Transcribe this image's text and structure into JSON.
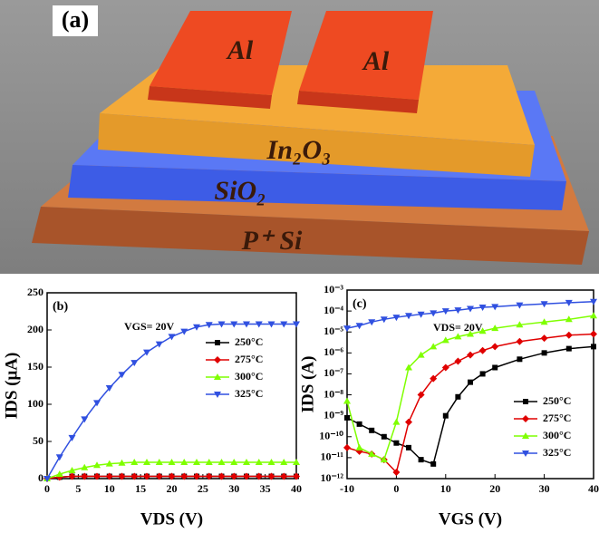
{
  "figure_a": {
    "label": "(a)",
    "layers": [
      "Al",
      "Al",
      "In₂O₃",
      "SiO₂",
      "P⁺ Si"
    ]
  },
  "chart_data": [
    {
      "type": "line",
      "label": "(b)",
      "annotation": "VGS= 20V",
      "xlabel": "VDS (V)",
      "ylabel": "IDS (μA)",
      "x": [
        0,
        2,
        4,
        6,
        8,
        10,
        12,
        14,
        16,
        18,
        20,
        22,
        24,
        26,
        28,
        30,
        32,
        34,
        36,
        38,
        40
      ],
      "xlim": [
        0,
        40
      ],
      "xticks": [
        0,
        5,
        10,
        15,
        20,
        25,
        30,
        35,
        40
      ],
      "ylim": [
        0,
        250
      ],
      "yticks": [
        0,
        50,
        100,
        150,
        200,
        250
      ],
      "grid": false,
      "legend": "right",
      "series": [
        {
          "name": "250°C",
          "color": "#000000",
          "marker": "square",
          "values": [
            0,
            2,
            3,
            3,
            3,
            3,
            3,
            3,
            3,
            3,
            3,
            3,
            3,
            3,
            3,
            3,
            3,
            3,
            3,
            3,
            3
          ]
        },
        {
          "name": "275°C",
          "color": "#e00000",
          "marker": "diamond",
          "values": [
            0,
            2,
            3,
            3,
            3,
            3,
            3,
            3,
            3,
            3,
            3,
            3,
            3,
            3,
            3,
            3,
            3,
            3,
            3,
            3,
            3
          ]
        },
        {
          "name": "300°C",
          "color": "#7fff00",
          "marker": "triangle-up",
          "values": [
            0,
            6,
            11,
            15,
            18,
            20,
            21,
            22,
            22,
            22,
            22,
            22,
            22,
            22,
            22,
            22,
            22,
            22,
            22,
            22,
            22
          ]
        },
        {
          "name": "325°C",
          "color": "#3050e0",
          "marker": "triangle-down",
          "values": [
            0,
            29,
            55,
            80,
            102,
            122,
            140,
            156,
            170,
            181,
            191,
            198,
            204,
            207,
            208,
            208,
            208,
            208,
            208,
            208,
            208
          ]
        }
      ]
    },
    {
      "type": "line",
      "label": "(c)",
      "annotation": "VDS= 20V",
      "xlabel": "VGS (V)",
      "ylabel": "IDS (A)",
      "ylog": true,
      "x": [
        -10,
        -7.5,
        -5,
        -2.5,
        0,
        2.5,
        5,
        7.5,
        10,
        12.5,
        15,
        17.5,
        20,
        25,
        30,
        35,
        40
      ],
      "xlim": [
        -10,
        40
      ],
      "xticks": [
        -10,
        0,
        10,
        20,
        30,
        40
      ],
      "ylim": [
        1e-12,
        0.001
      ],
      "yticks": [
        {
          "value": 1e-12,
          "label": "10⁻¹²"
        },
        {
          "value": 1e-11,
          "label": "10⁻¹¹"
        },
        {
          "value": 1e-10,
          "label": "10⁻¹⁰"
        },
        {
          "value": 1e-09,
          "label": "10⁻⁹"
        },
        {
          "value": 1e-08,
          "label": "10⁻⁸"
        },
        {
          "value": 1e-07,
          "label": "10⁻⁷"
        },
        {
          "value": 1e-06,
          "label": "10⁻⁶"
        },
        {
          "value": 1e-05,
          "label": "10⁻⁵"
        },
        {
          "value": 0.0001,
          "label": "10⁻⁴"
        },
        {
          "value": 0.001,
          "label": "10⁻³"
        }
      ],
      "grid": false,
      "legend": "lower right",
      "series": [
        {
          "name": "250°C",
          "color": "#000000",
          "marker": "square",
          "values": [
            8e-10,
            4e-10,
            2e-10,
            1e-10,
            5e-11,
            3e-11,
            8e-12,
            5e-12,
            1e-09,
            8e-09,
            4e-08,
            1e-07,
            2e-07,
            5e-07,
            1e-06,
            1.6e-06,
            2e-06
          ]
        },
        {
          "name": "275°C",
          "color": "#e00000",
          "marker": "diamond",
          "values": [
            3e-11,
            2e-11,
            1.5e-11,
            8e-12,
            2e-12,
            5e-10,
            1e-08,
            6e-08,
            2e-07,
            4e-07,
            8e-07,
            1.3e-06,
            2e-06,
            3.5e-06,
            5e-06,
            7e-06,
            8e-06
          ]
        },
        {
          "name": "300°C",
          "color": "#7fff00",
          "marker": "triangle-up",
          "values": [
            5e-09,
            3e-11,
            1.5e-11,
            8e-12,
            5e-10,
            2e-07,
            8e-07,
            2e-06,
            4e-06,
            6e-06,
            8e-06,
            1.1e-05,
            1.5e-05,
            2.2e-05,
            3e-05,
            4e-05,
            6e-05
          ]
        },
        {
          "name": "325°C",
          "color": "#3050e0",
          "marker": "triangle-down",
          "values": [
            1.5e-05,
            2e-05,
            3e-05,
            4e-05,
            5e-05,
            6e-05,
            7e-05,
            8e-05,
            0.0001,
            0.00011,
            0.00013,
            0.00015,
            0.00016,
            0.00019,
            0.00022,
            0.00025,
            0.00028
          ]
        }
      ]
    }
  ]
}
